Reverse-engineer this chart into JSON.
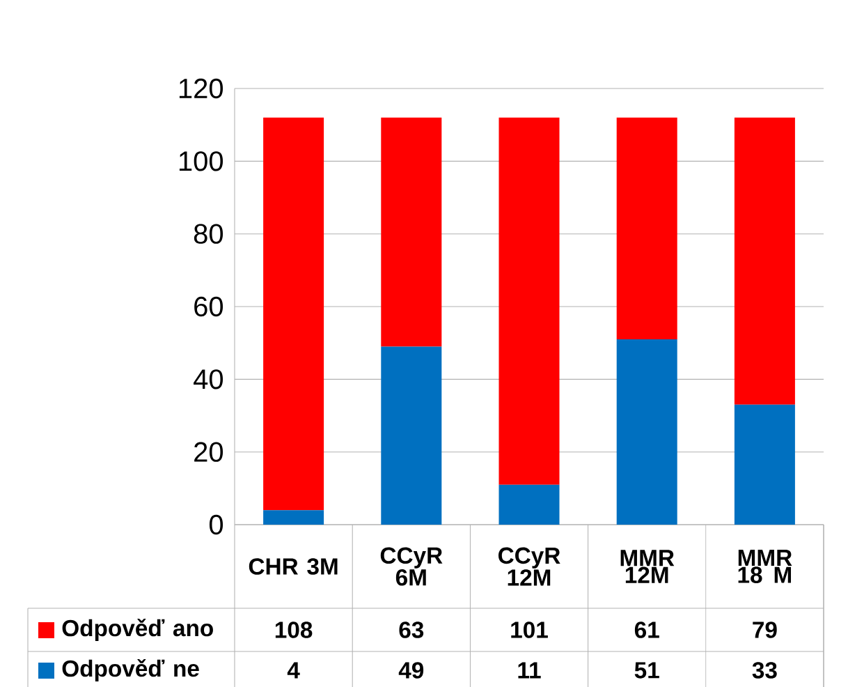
{
  "chart_data": {
    "type": "bar",
    "stacked": true,
    "categories": [
      "CHR 3M",
      "CCyR 6M",
      "CCyR 12M",
      "MMR 12M",
      "MMR 18 M"
    ],
    "series": [
      {
        "name": "Odpověď ne",
        "color": "#0070c0",
        "values": [
          4,
          49,
          11,
          51,
          33
        ]
      },
      {
        "name": "Odpověď ano",
        "color": "#ff0000",
        "values": [
          108,
          63,
          101,
          61,
          79
        ]
      }
    ],
    "ylim": [
      0,
      120
    ],
    "yticks": [
      0,
      20,
      40,
      60,
      80,
      100,
      120
    ],
    "grid": "y",
    "data_labels": true,
    "legend": "bottom"
  }
}
